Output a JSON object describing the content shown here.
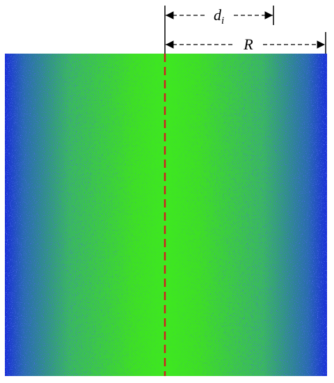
{
  "labels": {
    "d": "d",
    "d_sub": "i",
    "r": "R"
  }
}
